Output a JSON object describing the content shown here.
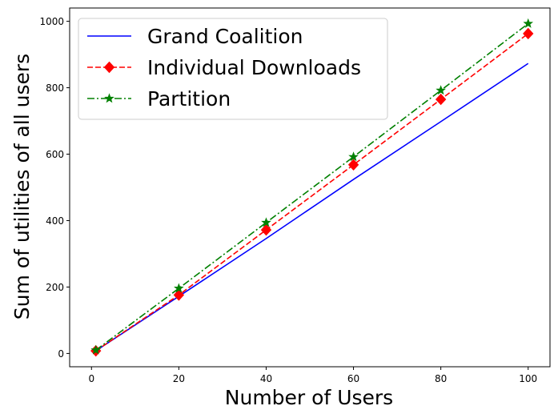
{
  "chart_data": {
    "type": "line",
    "xlabel": "Number of Users",
    "ylabel": "Sum of utilities of all users",
    "xlim": [
      -5,
      105
    ],
    "ylim": [
      -40,
      1040
    ],
    "xticks": [
      0,
      20,
      40,
      60,
      80,
      100
    ],
    "yticks": [
      0,
      200,
      400,
      600,
      800,
      1000
    ],
    "grid": false,
    "legend_position": "upper-left",
    "series": [
      {
        "name": "Grand Coalition",
        "style": "solid",
        "color": "#0000ff",
        "marker": "none",
        "x": [
          1,
          20,
          40,
          60,
          80,
          100
        ],
        "y": [
          8,
          172,
          346,
          524,
          698,
          873
        ]
      },
      {
        "name": "Individual Downloads",
        "style": "dashed",
        "color": "#ff0000",
        "marker": "diamond",
        "x": [
          1,
          20,
          40,
          60,
          80,
          100
        ],
        "y": [
          8,
          176,
          372,
          568,
          765,
          963
        ]
      },
      {
        "name": "Partition",
        "style": "dashdot",
        "color": "#008000",
        "marker": "star",
        "x": [
          1,
          20,
          40,
          60,
          80,
          100
        ],
        "y": [
          10,
          196,
          394,
          592,
          792,
          993
        ]
      }
    ]
  }
}
